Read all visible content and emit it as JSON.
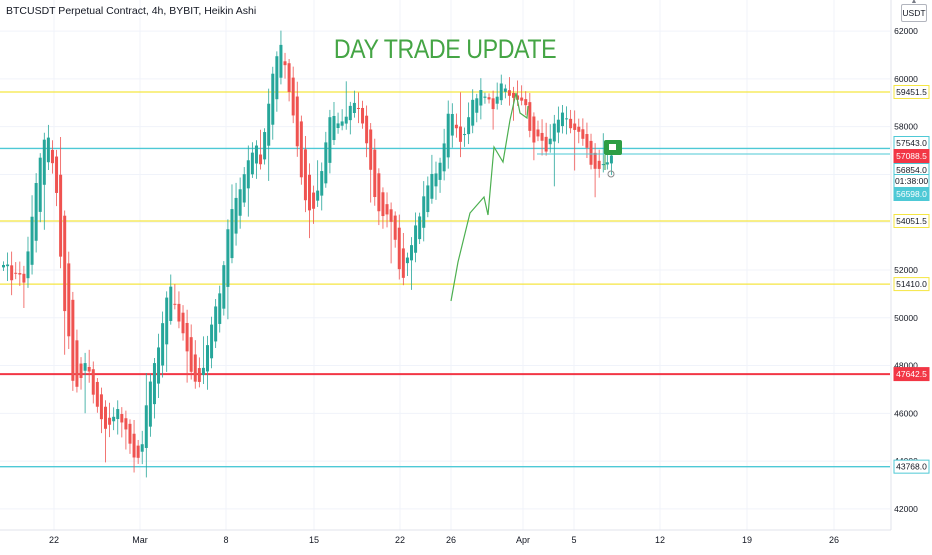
{
  "header": {
    "symbol_title": "BTCUSDT Perpetual Contract, 4h, BYBIT, Heikin Ashi",
    "headline": "DAY TRADE UPDATE",
    "currency": "USDT"
  },
  "colors": {
    "up": "#26a69a",
    "down": "#ef5350",
    "yellow_line": "#f5e642",
    "cyan_line": "#4ec9d6",
    "red_line": "#f23645",
    "grid": "#f0f3fa",
    "axis_text": "#131722",
    "trend_green": "#4caf50"
  },
  "chart_data": {
    "type": "candlestick",
    "title": "BTCUSDT Perpetual Contract, 4h, BYBIT, Heikin Ashi",
    "annotation": "DAY TRADE UPDATE",
    "ylim": [
      41200,
      62800
    ],
    "y_ticks": [
      42000,
      44000,
      46000,
      48000,
      50000,
      52000,
      54000,
      56000,
      58000,
      60000,
      62000
    ],
    "x_ticks": [
      "22",
      "Mar",
      "8",
      "15",
      "22",
      "26",
      "Apr",
      "5",
      "12",
      "19",
      "26"
    ],
    "grid": true,
    "horizontal_levels": [
      {
        "value": 59451.5,
        "label": "59451.5",
        "color": "yellow"
      },
      {
        "value": 57088.5,
        "label": "57088.5",
        "color": "cyan"
      },
      {
        "value": 54051.5,
        "label": "54051.5",
        "color": "yellow"
      },
      {
        "value": 51410.0,
        "label": "51410.0",
        "color": "yellow"
      },
      {
        "value": 47642.5,
        "label": "47642.5",
        "color": "red"
      },
      {
        "value": 43768.0,
        "label": "43768.0",
        "color": "cyan"
      }
    ],
    "price_labels": [
      {
        "value": 57543.0,
        "label": "57543.0",
        "kind": "cyan-outline"
      },
      {
        "value": 57088.5,
        "label": "57088.5",
        "kind": "red"
      },
      {
        "value": 56854.0,
        "label": "56854.0",
        "kind": "cyan-outline"
      },
      {
        "value": 56854.0,
        "label": "01:38:00",
        "kind": "countdown"
      },
      {
        "value": 56598.0,
        "label": "56598.0",
        "kind": "cyan"
      }
    ],
    "current_price": 56598.0,
    "waypoints": [
      [
        52400,
        52000,
        51600,
        52100,
        51300,
        52800,
        54800,
        56300,
        57200,
        57500,
        56500,
        54500
      ],
      [
        50800,
        49500,
        47400,
        47000,
        47800,
        48200,
        46800,
        46300,
        45800,
        45200,
        45900,
        46400
      ],
      [
        45600,
        45000,
        44400,
        44000,
        44700,
        46500,
        47400,
        48400,
        49400,
        50800,
        51200,
        50300
      ],
      [
        49600,
        48600,
        47800,
        47200,
        47600,
        48600,
        49800,
        50400,
        51200,
        53000,
        54400,
        55100
      ],
      [
        55500,
        56400,
        57000,
        57200,
        56600,
        58200,
        59600,
        60800,
        61600,
        60600,
        59200,
        58000
      ],
      [
        56400,
        55100,
        54400,
        54800,
        55600,
        57300,
        58300,
        58500,
        58200,
        58400,
        58900,
        59000
      ],
      [
        58800,
        57800,
        56400,
        55300,
        54400,
        54100,
        54300,
        53400,
        52200,
        51800,
        52800,
        53400
      ],
      [
        54200,
        55200,
        55600,
        56000,
        56200,
        57000,
        58400,
        58700,
        57400,
        57700,
        58300,
        59200
      ],
      [
        59200,
        59500,
        59000,
        58800,
        59200,
        59800,
        59700,
        59100,
        59200,
        59200,
        58500,
        57300
      ],
      [
        57500,
        57300,
        57100,
        57700,
        58400,
        58500,
        58200,
        58000,
        57800,
        57500,
        57000,
        56500
      ],
      [
        56000,
        56200,
        56400,
        56800
      ]
    ]
  }
}
